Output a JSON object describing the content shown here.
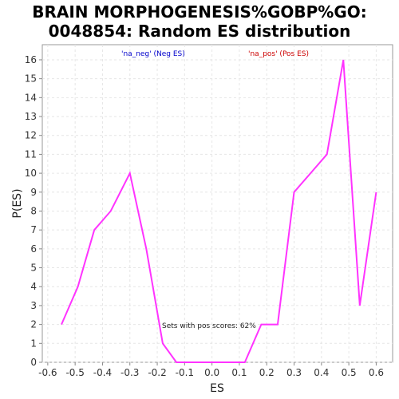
{
  "chart_data": {
    "type": "line",
    "title_line1": "BRAIN MORPHOGENESIS%GOBP%GO:",
    "title_line2": "0048854: Random ES distribution",
    "xlabel": "ES",
    "ylabel": "P(ES)",
    "xlim": [
      -0.62,
      0.66
    ],
    "ylim": [
      0,
      16.8
    ],
    "xticks": [
      -0.6,
      -0.5,
      -0.4,
      -0.3,
      -0.2,
      -0.1,
      0.0,
      0.1,
      0.2,
      0.3,
      0.4,
      0.5,
      0.6
    ],
    "xtick_labels": [
      "-0.6",
      "-0.5",
      "-0.4",
      "-0.3",
      "-0.2",
      "-0.1",
      "0.0",
      "0.1",
      "0.2",
      "0.3",
      "0.4",
      "0.5",
      "0.6"
    ],
    "yticks": [
      0,
      1,
      2,
      3,
      4,
      5,
      6,
      7,
      8,
      9,
      10,
      11,
      12,
      13,
      14,
      15,
      16
    ],
    "ytick_labels": [
      "0",
      "1",
      "2",
      "3",
      "4",
      "5",
      "6",
      "7",
      "8",
      "9",
      "10",
      "11",
      "12",
      "13",
      "14",
      "15",
      "16"
    ],
    "grid": true,
    "series": [
      {
        "color": "#ff33ff",
        "x": [
          -0.55,
          -0.49,
          -0.43,
          -0.37,
          -0.3,
          -0.24,
          -0.18,
          -0.13,
          -0.07,
          -0.01,
          0.05,
          0.12,
          0.18,
          0.24,
          0.3,
          0.36,
          0.42,
          0.48,
          0.54,
          0.6
        ],
        "y": [
          2,
          4,
          7,
          8,
          10,
          6,
          1,
          0,
          0,
          0,
          0,
          0,
          2,
          2,
          9,
          10,
          11,
          16,
          3,
          9
        ]
      }
    ],
    "legend": {
      "neg_label": "'na_neg' (Neg ES)",
      "neg_color": "#0000cc",
      "pos_label": "'na_pos' (Pos ES)",
      "pos_color": "#cc0000"
    },
    "annotation": "Sets with pos scores: 62%"
  }
}
